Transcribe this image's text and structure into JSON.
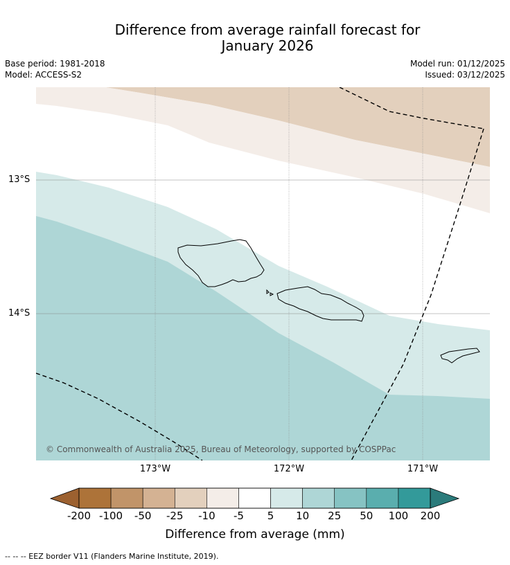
{
  "title_line1": "Difference from average rainfall forecast for",
  "title_line2": "January 2026",
  "base_period": "Base period: 1981-2018",
  "model": "Model: ACCESS-S2",
  "model_run": "Model run: 01/12/2025",
  "issued": "Issued: 03/12/2025",
  "lat_labels": [
    "13°S",
    "14°S"
  ],
  "lon_labels": [
    "173°W",
    "172°W",
    "171°W"
  ],
  "copyright": "© Commonwealth of Australia 2025, Bureau of Meteorology, supported by COSPPac",
  "colorbar": {
    "ticks": [
      "-200",
      "-100",
      "-50",
      "-25",
      "-10",
      "-5",
      "5",
      "10",
      "25",
      "50",
      "100",
      "200"
    ],
    "colors": [
      "#ad7339",
      "#c19469",
      "#d4b293",
      "#e3d0bd",
      "#f4ede8",
      "#ffffff",
      "#d6eae9",
      "#aed6d6",
      "#86c3c3",
      "#5aaeae",
      "#339a9a"
    ],
    "under_color": "#9c6130",
    "over_color": "#2b7b7b",
    "title": "Difference from average (mm)"
  },
  "footnote": "--  --  -- EEZ border V11 (Flanders Marine Institute, 2019)."
}
